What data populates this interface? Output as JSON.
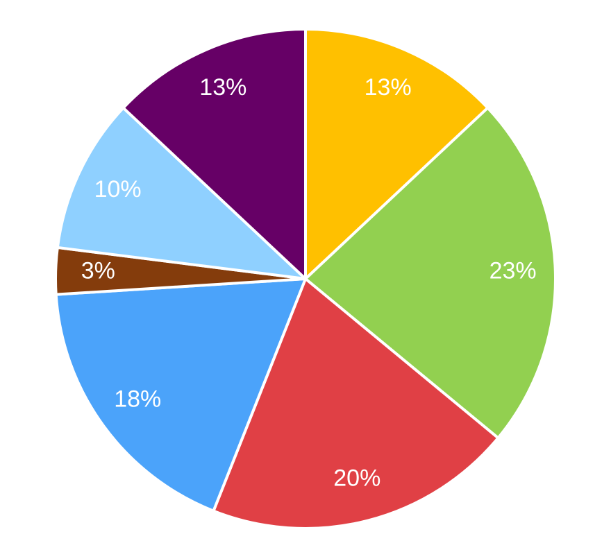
{
  "chart_data": {
    "type": "pie",
    "values": [
      13,
      23,
      20,
      18,
      3,
      10,
      13
    ],
    "value_labels": [
      "13%",
      "23%",
      "20%",
      "18%",
      "3%",
      "10%",
      "13%"
    ],
    "colors": [
      "#ffc000",
      "#92d050",
      "#e04045",
      "#4ba3fa",
      "#843c0c",
      "#8fd0ff",
      "#660066"
    ]
  }
}
